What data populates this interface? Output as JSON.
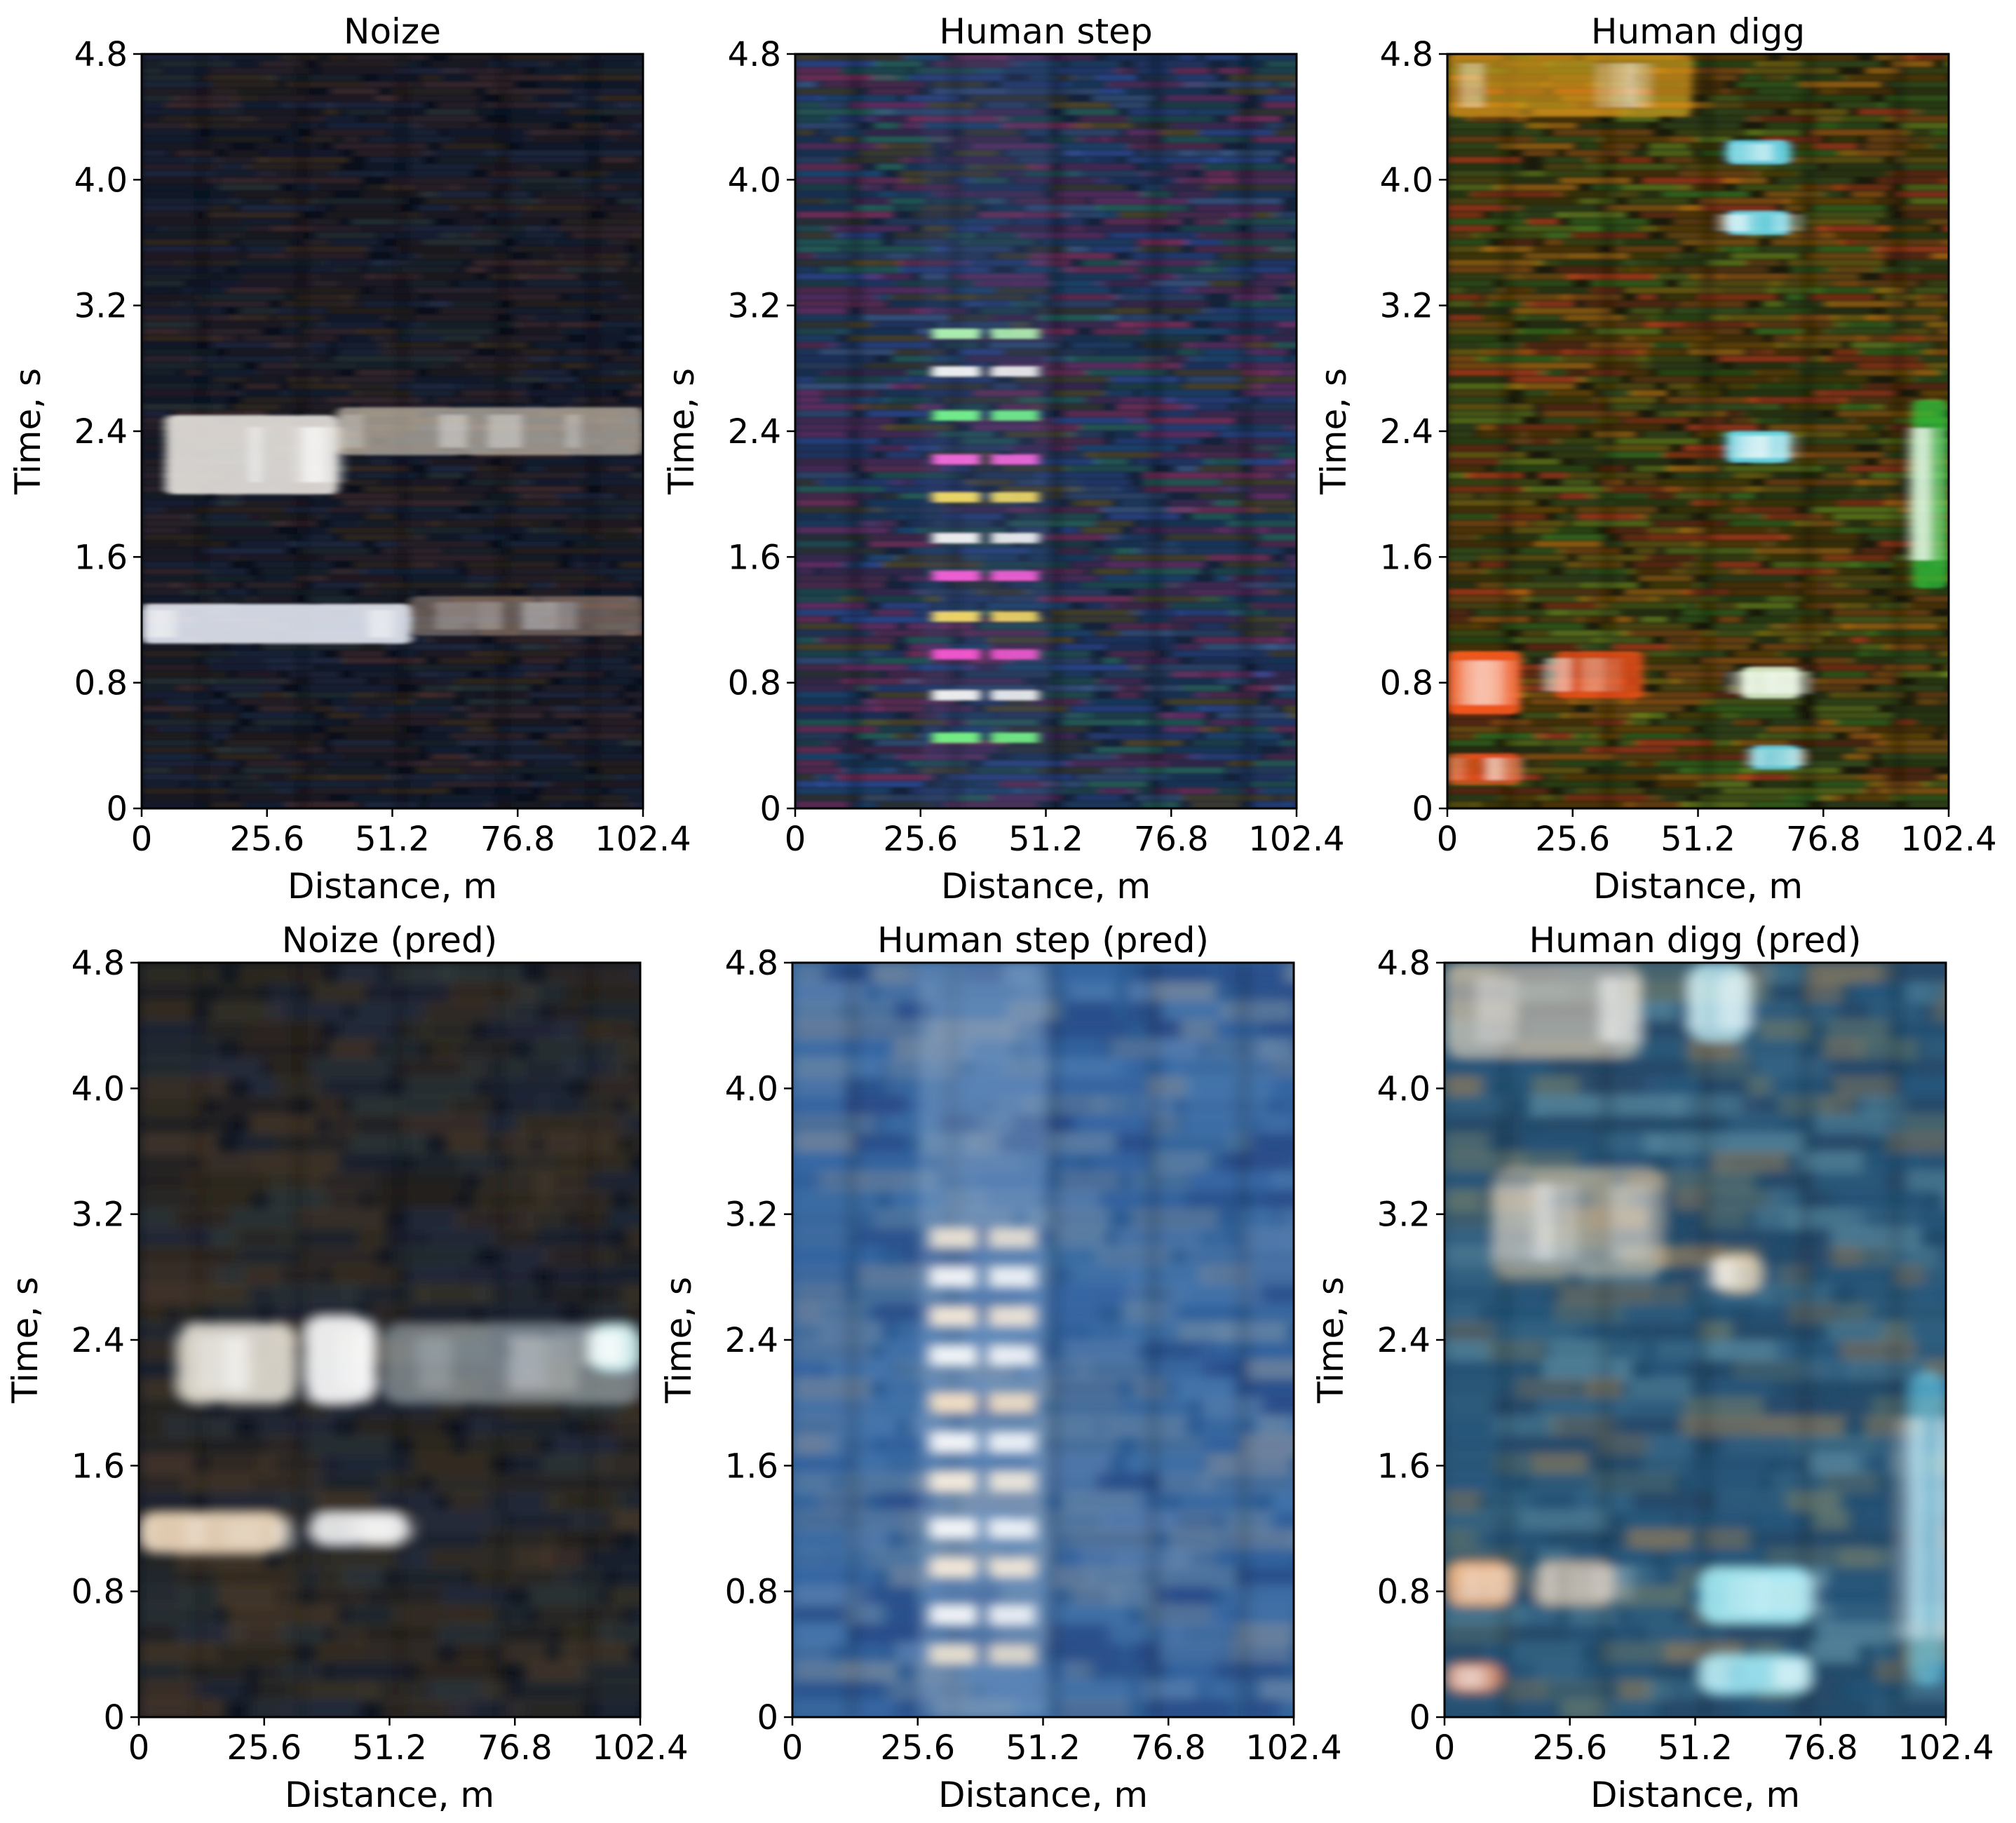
{
  "figure": {
    "background": "#ffffff"
  },
  "chart_data": [
    {
      "type": "heatmap",
      "title": "Noize",
      "xlabel": "Distance, m",
      "ylabel": "Time, s",
      "xlim": [
        0,
        102.4
      ],
      "ylim": [
        0,
        4.8
      ],
      "xticks": [
        "0",
        "25.6",
        "51.2",
        "76.8",
        "102.4"
      ],
      "yticks": [
        "0",
        "0.8",
        "1.6",
        "2.4",
        "3.2",
        "4.0",
        "4.8"
      ],
      "style": "noise",
      "base_color": "#0a0f1c",
      "highlights": [
        {
          "x": [
            5,
            40
          ],
          "y": [
            2.0,
            2.5
          ],
          "color": "#f5f0ea",
          "intensity": 0.85
        },
        {
          "x": [
            40,
            102.4
          ],
          "y": [
            2.25,
            2.55
          ],
          "color": "#e8dcc8",
          "intensity": 0.6
        },
        {
          "x": [
            0,
            55
          ],
          "y": [
            1.05,
            1.3
          ],
          "color": "#f0f4ff",
          "intensity": 0.85
        },
        {
          "x": [
            55,
            102.4
          ],
          "y": [
            1.1,
            1.35
          ],
          "color": "#d9b8a0",
          "intensity": 0.4
        }
      ]
    },
    {
      "type": "heatmap",
      "title": "Human step",
      "xlabel": "Distance, m",
      "ylabel": "Time, s",
      "xlim": [
        0,
        102.4
      ],
      "ylim": [
        0,
        4.8
      ],
      "xticks": [
        "0",
        "25.6",
        "51.2",
        "76.8",
        "102.4"
      ],
      "yticks": [
        "0",
        "0.8",
        "1.6",
        "2.4",
        "3.2",
        "4.0",
        "4.8"
      ],
      "style": "step",
      "base_color": "#14223a",
      "step_x": [
        26,
        52
      ],
      "step_times": [
        0.45,
        0.72,
        0.98,
        1.22,
        1.48,
        1.72,
        1.98,
        2.22,
        2.5,
        2.78,
        3.02
      ],
      "step_colors": [
        "#7dff8a",
        "#ffffff",
        "#ff5ad8",
        "#ffe36a",
        "#ff64e0",
        "#ffffff",
        "#ffe66b",
        "#ff6ee6",
        "#79ff91",
        "#ffffff",
        "#b8ffb8"
      ]
    },
    {
      "type": "heatmap",
      "title": "Human digg",
      "xlabel": "Distance, m",
      "ylabel": "Time, s",
      "xlim": [
        0,
        102.4
      ],
      "ylim": [
        0,
        4.8
      ],
      "xticks": [
        "0",
        "25.6",
        "51.2",
        "76.8",
        "102.4"
      ],
      "yticks": [
        "0",
        "0.8",
        "1.6",
        "2.4",
        "3.2",
        "4.0",
        "4.8"
      ],
      "style": "digg",
      "base_color": "#1a1a0c",
      "highlights": [
        {
          "x": [
            0,
            15
          ],
          "y": [
            0.6,
            1.0
          ],
          "color": "#ff5a1e",
          "intensity": 0.9
        },
        {
          "x": [
            22,
            40
          ],
          "y": [
            0.7,
            1.0
          ],
          "color": "#ff4f1a",
          "intensity": 0.75
        },
        {
          "x": [
            0,
            15
          ],
          "y": [
            0.15,
            0.35
          ],
          "color": "#ff5a1e",
          "intensity": 0.7
        },
        {
          "x": [
            57,
            70
          ],
          "y": [
            2.2,
            2.4
          ],
          "color": "#6ee8ff",
          "intensity": 0.85
        },
        {
          "x": [
            57,
            70
          ],
          "y": [
            3.65,
            3.8
          ],
          "color": "#6ee8ff",
          "intensity": 0.85
        },
        {
          "x": [
            57,
            70
          ],
          "y": [
            4.1,
            4.25
          ],
          "color": "#6ee8ff",
          "intensity": 0.85
        },
        {
          "x": [
            60,
            72
          ],
          "y": [
            0.7,
            0.9
          ],
          "color": "#e8ffd8",
          "intensity": 0.85
        },
        {
          "x": [
            62,
            72
          ],
          "y": [
            0.25,
            0.4
          ],
          "color": "#6ee8ff",
          "intensity": 0.8
        },
        {
          "x": [
            95,
            102.4
          ],
          "y": [
            1.4,
            2.6
          ],
          "color": "#30d040",
          "intensity": 0.7
        },
        {
          "x": [
            0,
            50
          ],
          "y": [
            4.4,
            4.8
          ],
          "color": "#ffb21e",
          "intensity": 0.55
        }
      ]
    },
    {
      "type": "heatmap",
      "title": "Noize (pred)",
      "xlabel": "Distance, m",
      "ylabel": "Time, s",
      "xlim": [
        0,
        102.4
      ],
      "ylim": [
        0,
        4.8
      ],
      "xticks": [
        "0",
        "25.6",
        "51.2",
        "76.8",
        "102.4"
      ],
      "yticks": [
        "0",
        "0.8",
        "1.6",
        "2.4",
        "3.2",
        "4.0",
        "4.8"
      ],
      "style": "noise_pred",
      "base_color": "#0e1420",
      "highlights": [
        {
          "x": [
            8,
            32
          ],
          "y": [
            2.0,
            2.5
          ],
          "color": "#f2ecdf",
          "intensity": 0.85
        },
        {
          "x": [
            34,
            48
          ],
          "y": [
            2.0,
            2.55
          ],
          "color": "#ffffff",
          "intensity": 0.9
        },
        {
          "x": [
            50,
            102.4
          ],
          "y": [
            2.0,
            2.5
          ],
          "color": "#b9c8d0",
          "intensity": 0.55
        },
        {
          "x": [
            92,
            102.4
          ],
          "y": [
            2.2,
            2.5
          ],
          "color": "#d8ffff",
          "intensity": 0.8
        },
        {
          "x": [
            0,
            30
          ],
          "y": [
            1.05,
            1.3
          ],
          "color": "#ffe6c8",
          "intensity": 0.85
        },
        {
          "x": [
            35,
            55
          ],
          "y": [
            1.1,
            1.3
          ],
          "color": "#ffffff",
          "intensity": 0.85
        }
      ]
    },
    {
      "type": "heatmap",
      "title": "Human step (pred)",
      "xlabel": "Distance, m",
      "ylabel": "Time, s",
      "xlim": [
        0,
        102.4
      ],
      "ylim": [
        0,
        4.8
      ],
      "xticks": [
        "0",
        "25.6",
        "51.2",
        "76.8",
        "102.4"
      ],
      "yticks": [
        "0",
        "0.8",
        "1.6",
        "2.4",
        "3.2",
        "4.0",
        "4.8"
      ],
      "style": "step_pred",
      "base_color": "#2a5a92",
      "step_x": [
        26,
        52
      ],
      "step_times": [
        0.4,
        0.65,
        0.95,
        1.2,
        1.5,
        1.75,
        2.0,
        2.3,
        2.55,
        2.8,
        3.05
      ],
      "step_colors": [
        "#f0e4d0",
        "#ffffff",
        "#fff0dc",
        "#ffffff",
        "#fff2e0",
        "#ffffff",
        "#ffe8c8",
        "#ffffff",
        "#fff0dc",
        "#ffffff",
        "#f4ead8"
      ]
    },
    {
      "type": "heatmap",
      "title": "Human digg (pred)",
      "xlabel": "Distance, m",
      "ylabel": "Time, s",
      "xlim": [
        0,
        102.4
      ],
      "ylim": [
        0,
        4.8
      ],
      "xticks": [
        "0",
        "25.6",
        "51.2",
        "76.8",
        "102.4"
      ],
      "yticks": [
        "0",
        "0.8",
        "1.6",
        "2.4",
        "3.2",
        "4.0",
        "4.8"
      ],
      "style": "digg_pred",
      "base_color": "#1f4a6a",
      "highlights": [
        {
          "x": [
            0,
            14
          ],
          "y": [
            0.7,
            1.0
          ],
          "color": "#ffb070",
          "intensity": 0.8
        },
        {
          "x": [
            18,
            35
          ],
          "y": [
            0.7,
            1.0
          ],
          "color": "#f0c8a0",
          "intensity": 0.6
        },
        {
          "x": [
            0,
            12
          ],
          "y": [
            0.15,
            0.35
          ],
          "color": "#ff7a40",
          "intensity": 0.7
        },
        {
          "x": [
            52,
            75
          ],
          "y": [
            0.6,
            0.95
          ],
          "color": "#a8f4ff",
          "intensity": 0.85
        },
        {
          "x": [
            52,
            75
          ],
          "y": [
            0.15,
            0.4
          ],
          "color": "#a8f4ff",
          "intensity": 0.8
        },
        {
          "x": [
            50,
            62
          ],
          "y": [
            4.3,
            4.8
          ],
          "color": "#c8f8ff",
          "intensity": 0.75
        },
        {
          "x": [
            55,
            65
          ],
          "y": [
            2.7,
            2.95
          ],
          "color": "#ffe0b0",
          "intensity": 0.7
        },
        {
          "x": [
            95,
            102.4
          ],
          "y": [
            0.2,
            2.2
          ],
          "color": "#70e0ff",
          "intensity": 0.55
        },
        {
          "x": [
            0,
            40
          ],
          "y": [
            4.2,
            4.8
          ],
          "color": "#f5dcc0",
          "intensity": 0.55
        },
        {
          "x": [
            10,
            45
          ],
          "y": [
            2.8,
            3.5
          ],
          "color": "#f0d8b8",
          "intensity": 0.45
        }
      ]
    }
  ]
}
